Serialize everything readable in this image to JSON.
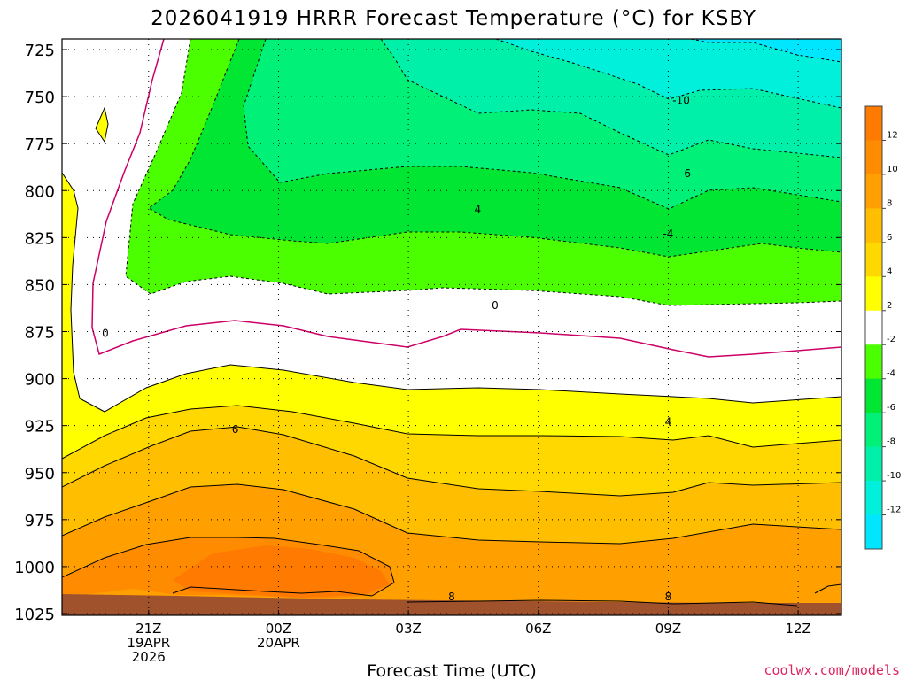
{
  "chart_data": {
    "type": "contour",
    "title": "2026041919 HRRR Forecast Temperature (°C) for KSBY",
    "xlabel": "Forecast Time (UTC)",
    "credit": "coolwx.com/models",
    "y_axis": {
      "label": "",
      "scale": "pressure (hPa), inverted",
      "ylim": [
        725,
        1025
      ],
      "ticks": [
        "725",
        "750",
        "775",
        "800",
        "825",
        "850",
        "875",
        "900",
        "925",
        "950",
        "975",
        "1000",
        "1025"
      ]
    },
    "x_axis": {
      "range_hours": [
        -2,
        16
      ],
      "ticks": [
        {
          "hour": 0,
          "lines": [
            "21Z",
            "19APR",
            "2026"
          ]
        },
        {
          "hour": 3,
          "lines": [
            "00Z",
            "20APR"
          ]
        },
        {
          "hour": 6,
          "lines": [
            "03Z"
          ]
        },
        {
          "hour": 9,
          "lines": [
            "06Z"
          ]
        },
        {
          "hour": 12,
          "lines": [
            "09Z"
          ]
        },
        {
          "hour": 15,
          "lines": [
            "12Z"
          ]
        }
      ]
    },
    "grid": true,
    "legend": "colorbar-right",
    "colorbar": {
      "ticks": [
        "12",
        "10",
        "8",
        "6",
        "4",
        "2",
        "-2",
        "-4",
        "-6",
        "-8",
        "-10",
        "-12"
      ],
      "bands": [
        {
          "range": "12 to 14",
          "color": "#ff7a00"
        },
        {
          "range": "10 to 12",
          "color": "#ff8c00"
        },
        {
          "range": "8 to 10",
          "color": "#ffa000"
        },
        {
          "range": "6 to 8",
          "color": "#ffbe00"
        },
        {
          "range": "4 to 6",
          "color": "#ffd800"
        },
        {
          "range": "2 to 4",
          "color": "#ffff00"
        },
        {
          "range": "-2 to 2",
          "color": "#ffffff"
        },
        {
          "range": "-4 to -2",
          "color": "#4cff00"
        },
        {
          "range": "-6 to -4",
          "color": "#00e632"
        },
        {
          "range": "-8 to -6",
          "color": "#00f078"
        },
        {
          "range": "-10 to -8",
          "color": "#00f0aa"
        },
        {
          "range": "-12 to -10",
          "color": "#00f0dc"
        },
        {
          "range": "-14 to -12",
          "color": "#00e6ff"
        }
      ]
    },
    "contour_labels": [
      {
        "text": "-10",
        "hour": 12.3,
        "p": 752
      },
      {
        "text": "-6",
        "hour": 12.4,
        "p": 791
      },
      {
        "text": "4",
        "hour": 7.6,
        "p": 810
      },
      {
        "text": "-4",
        "hour": 12.0,
        "p": 823
      },
      {
        "text": "0",
        "hour": 8.0,
        "p": 861
      },
      {
        "text": "0",
        "hour": -1.0,
        "p": 876
      },
      {
        "text": "6",
        "hour": 2.0,
        "p": 927
      },
      {
        "text": "4",
        "hour": 12.0,
        "p": 923
      },
      {
        "text": "8",
        "hour": 7.0,
        "p": 1016
      },
      {
        "text": "8",
        "hour": 12.0,
        "p": 1016
      }
    ]
  }
}
